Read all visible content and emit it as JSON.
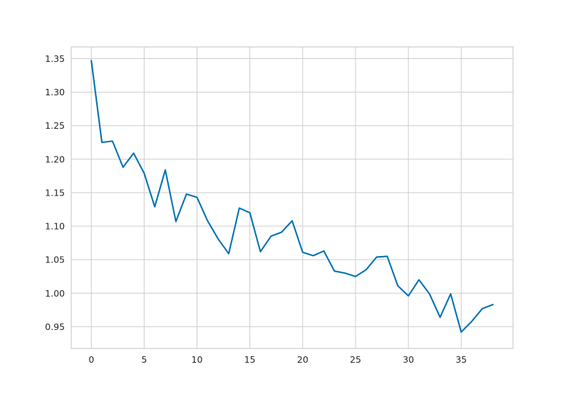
{
  "chart_data": {
    "type": "line",
    "title": "",
    "xlabel": "",
    "ylabel": "",
    "xlim": [
      -1.9,
      39.9
    ],
    "ylim": [
      0.9175,
      1.3675
    ],
    "xticks": [
      0,
      5,
      10,
      15,
      20,
      25,
      30,
      35
    ],
    "yticks": [
      0.95,
      1.0,
      1.05,
      1.1,
      1.15,
      1.2,
      1.25,
      1.3,
      1.35
    ],
    "xtick_labels": [
      "0",
      "5",
      "10",
      "15",
      "20",
      "25",
      "30",
      "35"
    ],
    "ytick_labels": [
      "0.95",
      "1.00",
      "1.05",
      "1.10",
      "1.15",
      "1.20",
      "1.25",
      "1.30",
      "1.35"
    ],
    "grid": true,
    "colors": {
      "line": "#0072b2",
      "grid": "#cccccc",
      "spine": "#cccccc",
      "background": "#ffffff"
    },
    "series": [
      {
        "x": [
          0,
          1,
          2,
          3,
          4,
          5,
          6,
          7,
          8,
          9,
          10,
          11,
          12,
          13,
          14,
          15,
          16,
          17,
          18,
          19,
          20,
          21,
          22,
          23,
          24,
          25,
          26,
          27,
          28,
          29,
          30,
          31,
          32,
          33,
          34,
          35,
          36,
          37,
          38
        ],
        "values": [
          1.347,
          1.225,
          1.227,
          1.188,
          1.209,
          1.179,
          1.129,
          1.184,
          1.107,
          1.148,
          1.143,
          1.108,
          1.081,
          1.059,
          1.127,
          1.12,
          1.062,
          1.085,
          1.091,
          1.108,
          1.061,
          1.056,
          1.063,
          1.033,
          1.03,
          1.025,
          1.035,
          1.054,
          1.055,
          1.011,
          0.996,
          1.02,
          0.999,
          0.964,
          0.999,
          0.942,
          0.958,
          0.977,
          0.983
        ]
      }
    ]
  }
}
